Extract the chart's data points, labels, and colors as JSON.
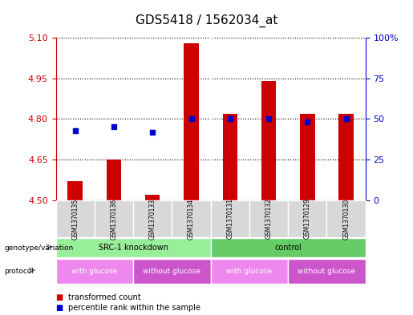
{
  "title": "GDS5418 / 1562034_at",
  "samples": [
    "GSM1370135",
    "GSM1370136",
    "GSM1370133",
    "GSM1370134",
    "GSM1370131",
    "GSM1370132",
    "GSM1370129",
    "GSM1370130"
  ],
  "transformed_count": [
    4.57,
    4.65,
    4.52,
    5.08,
    4.82,
    4.94,
    4.82,
    4.82
  ],
  "percentile_rank": [
    43,
    45,
    42,
    50,
    50,
    50,
    48,
    50
  ],
  "ylim_left": [
    4.5,
    5.1
  ],
  "yticks_left": [
    4.5,
    4.65,
    4.8,
    4.95,
    5.1
  ],
  "ylim_right": [
    0,
    100
  ],
  "yticks_right": [
    0,
    25,
    50,
    75,
    100
  ],
  "ytick_labels_right": [
    "0",
    "25",
    "50",
    "75",
    "100%"
  ],
  "bar_color": "#cc0000",
  "dot_color": "#0000cc",
  "bar_bottom": 4.5,
  "genotype_groups": [
    {
      "label": "SRC-1 knockdown",
      "start": 0,
      "end": 4,
      "color": "#99ee99"
    },
    {
      "label": "control",
      "start": 4,
      "end": 8,
      "color": "#66cc66"
    }
  ],
  "protocol_groups": [
    {
      "label": "with glucose",
      "start": 0,
      "end": 2,
      "color": "#ee88ee"
    },
    {
      "label": "without glucose",
      "start": 2,
      "end": 4,
      "color": "#cc55cc"
    },
    {
      "label": "with glucose",
      "start": 4,
      "end": 6,
      "color": "#ee88ee"
    },
    {
      "label": "without glucose",
      "start": 6,
      "end": 8,
      "color": "#cc55cc"
    }
  ],
  "legend_items": [
    {
      "label": "transformed count",
      "color": "#cc0000"
    },
    {
      "label": "percentile rank within the sample",
      "color": "#0000cc"
    }
  ],
  "plot_bg_color": "#ffffff",
  "left_tick_color": "#cc0000",
  "right_tick_color": "#0000cc",
  "sample_box_color": "#d8d8d8"
}
